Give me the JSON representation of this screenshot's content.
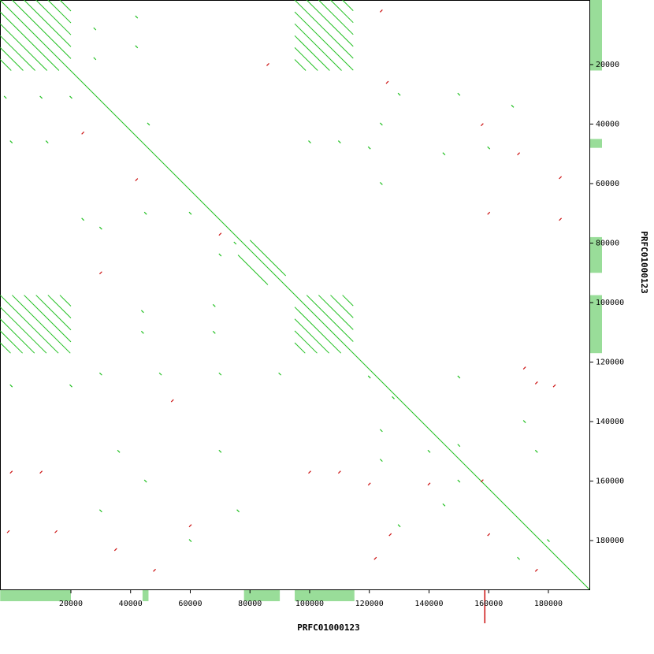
{
  "chart_data": {
    "type": "dotplot",
    "x_label": "PRFC01000123",
    "y_label": "PRFC01000123",
    "xlim": [
      -3760,
      193740
    ],
    "ylim": [
      -1700,
      196400
    ],
    "y_inverted": true,
    "xticks": [
      20000,
      40000,
      60000,
      80000,
      100000,
      120000,
      140000,
      160000,
      180000
    ],
    "yticks": [
      20000,
      40000,
      60000,
      80000,
      100000,
      120000,
      140000,
      160000,
      180000
    ],
    "forward_color": "#22c022",
    "reverse_color": "#cc1111",
    "coverage_color": "#99dd99",
    "segments": [
      [
        -3760,
        -1700,
        193740,
        196400
      ],
      [
        300,
        -1700,
        20000,
        18000
      ],
      [
        4300,
        -1700,
        20000,
        14000
      ],
      [
        8300,
        -1700,
        20000,
        10000
      ],
      [
        12300,
        -1700,
        20000,
        6000
      ],
      [
        16300,
        -1700,
        20000,
        2000
      ],
      [
        -3700,
        2300,
        16000,
        22000
      ],
      [
        -3700,
        6300,
        12000,
        22000
      ],
      [
        -3700,
        10300,
        8000,
        22000
      ],
      [
        -3700,
        14300,
        4000,
        22000
      ],
      [
        -3700,
        18300,
        0,
        22000
      ],
      [
        111000,
        -1700,
        114600,
        1900
      ],
      [
        107000,
        -1700,
        114600,
        5900
      ],
      [
        103000,
        -1700,
        114600,
        9900
      ],
      [
        99000,
        -1700,
        114600,
        13900
      ],
      [
        95000,
        -1700,
        114600,
        17900
      ],
      [
        95000,
        2300,
        114600,
        21900
      ],
      [
        95000,
        6300,
        110700,
        22000
      ],
      [
        95000,
        10300,
        106700,
        22000
      ],
      [
        95000,
        14300,
        102700,
        22000
      ],
      [
        95000,
        18300,
        98700,
        22000
      ],
      [
        16300,
        97500,
        20000,
        101200
      ],
      [
        12300,
        97500,
        20000,
        105200
      ],
      [
        8300,
        97500,
        20000,
        109200
      ],
      [
        4300,
        97500,
        20000,
        113200
      ],
      [
        300,
        97500,
        19800,
        117000
      ],
      [
        -3700,
        97500,
        15800,
        117000
      ],
      [
        -3700,
        101500,
        11800,
        117000
      ],
      [
        -3700,
        105500,
        7800,
        117000
      ],
      [
        -3700,
        109500,
        3800,
        117000
      ],
      [
        -3700,
        113500,
        -200,
        117000
      ],
      [
        111000,
        97500,
        114600,
        101100
      ],
      [
        107000,
        97500,
        114600,
        105100
      ],
      [
        103000,
        97500,
        114600,
        109100
      ],
      [
        99000,
        97500,
        114600,
        113100
      ],
      [
        95000,
        101500,
        110500,
        117000
      ],
      [
        95000,
        105500,
        106500,
        117000
      ],
      [
        95000,
        109500,
        102500,
        117000
      ],
      [
        95000,
        113500,
        98500,
        117000
      ],
      [
        80000,
        79000,
        92000,
        91000
      ],
      [
        76000,
        84000,
        86000,
        94000
      ]
    ],
    "forward_points": [
      [
        28000,
        8000
      ],
      [
        28000,
        18000
      ],
      [
        42000,
        4000
      ],
      [
        42000,
        14000
      ],
      [
        -2000,
        31000
      ],
      [
        10000,
        31000
      ],
      [
        20000,
        31000
      ],
      [
        0,
        46000
      ],
      [
        12000,
        46000
      ],
      [
        100000,
        46000
      ],
      [
        110000,
        46000
      ],
      [
        124000,
        40000
      ],
      [
        124000,
        60000
      ],
      [
        130000,
        30000
      ],
      [
        150000,
        30000
      ],
      [
        168000,
        34000
      ],
      [
        160000,
        48000
      ],
      [
        145000,
        50000
      ],
      [
        120000,
        48000
      ],
      [
        46000,
        40000
      ],
      [
        45000,
        70000
      ],
      [
        24000,
        72000
      ],
      [
        30000,
        75000
      ],
      [
        60000,
        70000
      ],
      [
        75000,
        80000
      ],
      [
        70000,
        84000
      ],
      [
        44000,
        103000
      ],
      [
        44000,
        110000
      ],
      [
        68000,
        101000
      ],
      [
        68000,
        110000
      ],
      [
        0,
        128000
      ],
      [
        20000,
        128000
      ],
      [
        30000,
        124000
      ],
      [
        50000,
        124000
      ],
      [
        70000,
        124000
      ],
      [
        90000,
        124000
      ],
      [
        120000,
        125000
      ],
      [
        128000,
        132000
      ],
      [
        150000,
        125000
      ],
      [
        124000,
        143000
      ],
      [
        124000,
        153000
      ],
      [
        150000,
        148000
      ],
      [
        145000,
        168000
      ],
      [
        150000,
        160000
      ],
      [
        140000,
        150000
      ],
      [
        36000,
        150000
      ],
      [
        45000,
        160000
      ],
      [
        70000,
        150000
      ],
      [
        172000,
        140000
      ],
      [
        176000,
        150000
      ],
      [
        180000,
        180000
      ],
      [
        170000,
        186000
      ],
      [
        130000,
        175000
      ],
      [
        60000,
        180000
      ],
      [
        76000,
        170000
      ],
      [
        30000,
        170000
      ]
    ],
    "reverse_points": [
      [
        157800,
        40200
      ],
      [
        157800,
        159900
      ],
      [
        42000,
        58700
      ],
      [
        24000,
        43000
      ],
      [
        70000,
        77000
      ],
      [
        160000,
        70000
      ],
      [
        176000,
        127000
      ],
      [
        182000,
        128000
      ],
      [
        172000,
        122000
      ],
      [
        127000,
        178000
      ],
      [
        122000,
        186000
      ],
      [
        60000,
        175000
      ],
      [
        48000,
        190000
      ],
      [
        10000,
        157000
      ],
      [
        0,
        157000
      ],
      [
        -1000,
        177000
      ],
      [
        15000,
        177000
      ],
      [
        100000,
        157000
      ],
      [
        110000,
        157000
      ],
      [
        120000,
        161000
      ],
      [
        140000,
        161000
      ],
      [
        184000,
        72000
      ],
      [
        184000,
        58000
      ],
      [
        170000,
        50000
      ],
      [
        160000,
        178000
      ],
      [
        176000,
        190000
      ],
      [
        30000,
        90000
      ],
      [
        54000,
        133000
      ],
      [
        35000,
        183000
      ],
      [
        86000,
        20000
      ],
      [
        124000,
        2000
      ],
      [
        126000,
        26000
      ]
    ],
    "x_coverage": [
      [
        -3700,
        20000
      ],
      [
        44000,
        46000
      ],
      [
        78000,
        90000
      ],
      [
        95000,
        115000
      ]
    ],
    "y_coverage": [
      [
        -1700,
        22000
      ],
      [
        45000,
        48000
      ],
      [
        78000,
        90000
      ],
      [
        97500,
        117000
      ]
    ],
    "x_coverage_reverse": [
      [
        158500,
        158900
      ]
    ]
  }
}
